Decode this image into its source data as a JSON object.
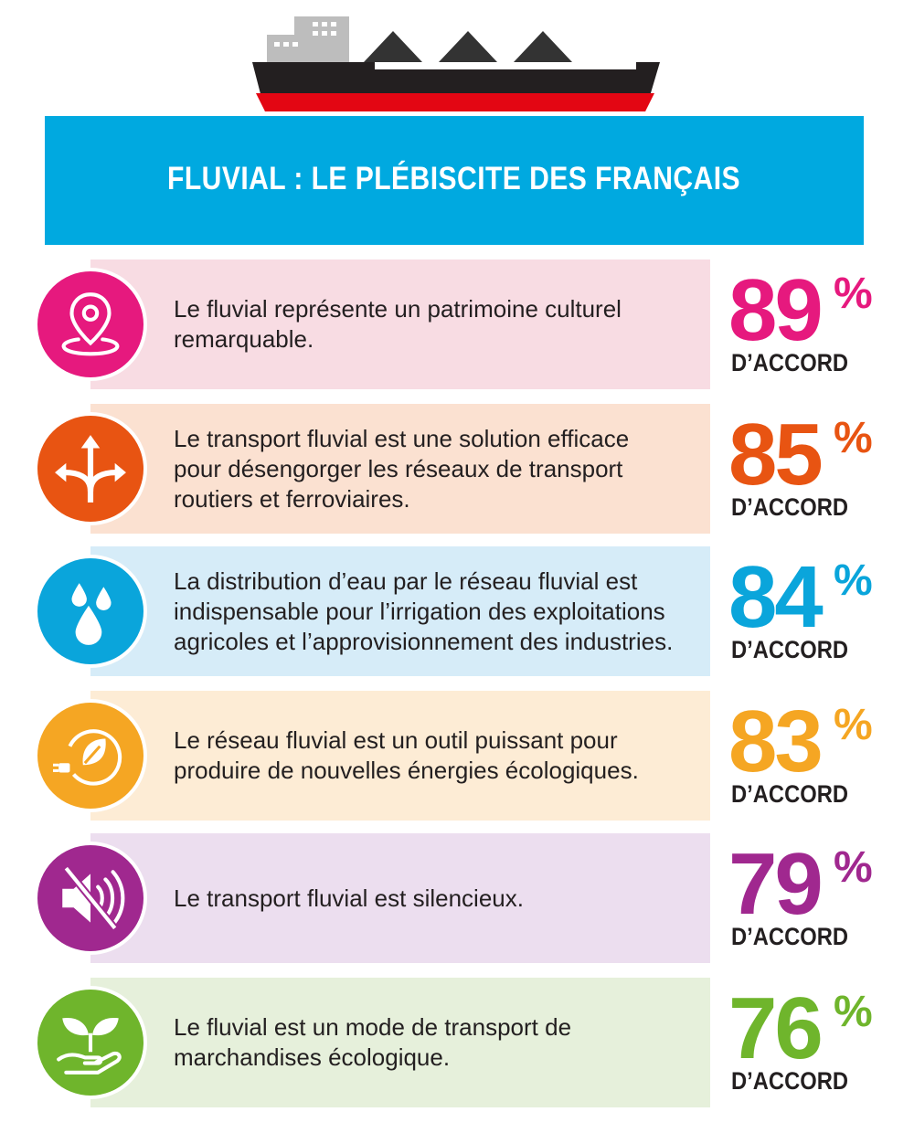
{
  "title": "FLUVIAL : LE PLÉBISCITE DES FRANÇAIS",
  "banner_color": "#00a9e0",
  "ship": {
    "icon": "cargo-ship-icon"
  },
  "rows": [
    {
      "icon": "location-pin-icon",
      "color": "#e6197e",
      "bg": "#f8dce3",
      "text_lines": [
        "Le fluvial représente un patrimoine culturel",
        "remarquable."
      ],
      "percent": "89",
      "percent_sign": "%",
      "label": "D’ACCORD"
    },
    {
      "icon": "directions-arrows-icon",
      "color": "#e85412",
      "bg": "#fbe1d1",
      "text_lines": [
        "Le transport fluvial est une solution efficace",
        "pour désengorger les réseaux de transport",
        "routiers et ferroviaires."
      ],
      "percent": "85",
      "percent_sign": "%",
      "label": "D’ACCORD"
    },
    {
      "icon": "water-drops-icon",
      "color": "#0aa5db",
      "bg": "#d6ecf8",
      "text_lines": [
        "La distribution d’eau par le réseau fluvial est",
        "indispensable pour l’irrigation des exploitations",
        "agricoles et l’approvisionnement des industries."
      ],
      "percent": "84",
      "percent_sign": "%",
      "label": "D’ACCORD"
    },
    {
      "icon": "green-energy-leaf-icon",
      "color": "#f5a623",
      "bg": "#fdecd5",
      "text_lines": [
        "Le réseau fluvial est un outil puissant pour",
        "produire de nouvelles énergies écologiques."
      ],
      "percent": "83",
      "percent_sign": "%",
      "label": "D’ACCORD"
    },
    {
      "icon": "muted-speaker-icon",
      "color": "#a0288f",
      "bg": "#ecdeef",
      "text_lines": [
        "Le transport fluvial est silencieux."
      ],
      "percent": "79",
      "percent_sign": "%",
      "label": "D’ACCORD"
    },
    {
      "icon": "plant-in-hand-icon",
      "color": "#6fb52c",
      "bg": "#e6f0db",
      "text_lines": [
        "Le fluvial est un mode de transport de",
        "marchandises écologique."
      ],
      "percent": "76",
      "percent_sign": "%",
      "label": "D’ACCORD"
    }
  ]
}
